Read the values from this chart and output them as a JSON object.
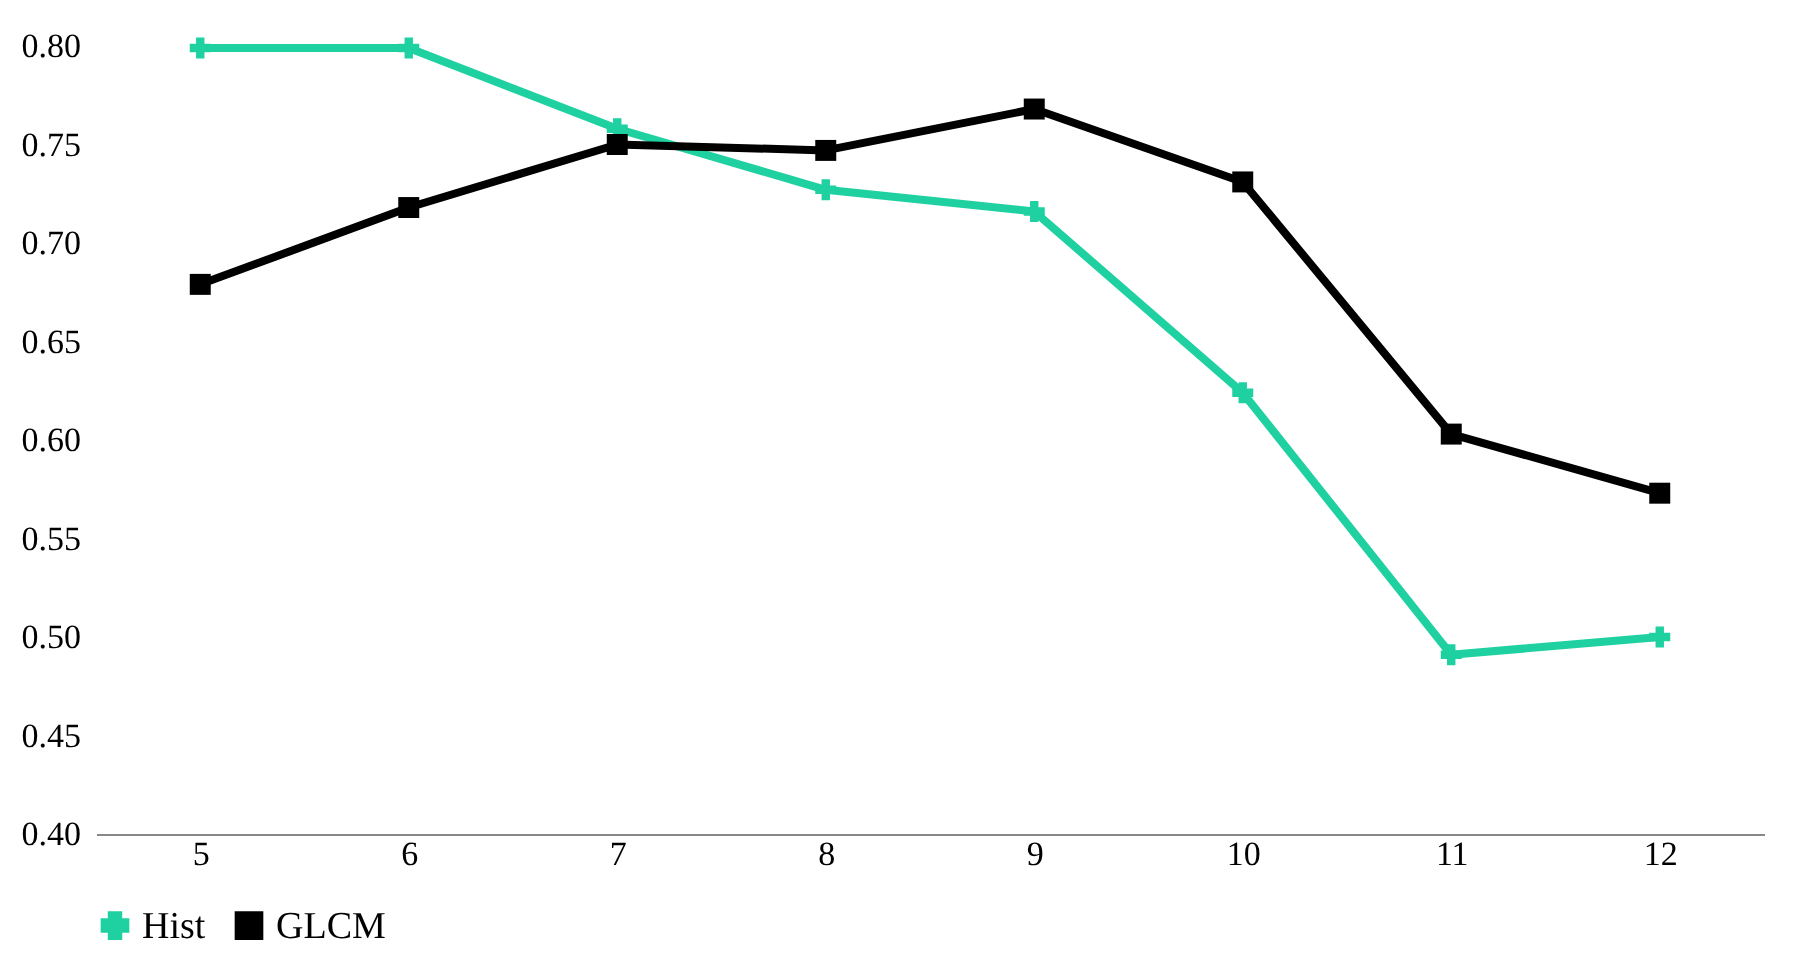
{
  "chart_data": {
    "type": "line",
    "categories": [
      "5",
      "6",
      "7",
      "8",
      "9",
      "10",
      "11",
      "12"
    ],
    "series": [
      {
        "name": "Hist",
        "color": "#1fd1a1",
        "marker": "cross",
        "values": [
          0.799,
          0.799,
          0.758,
          0.727,
          0.716,
          0.624,
          0.491,
          0.5
        ]
      },
      {
        "name": "GLCM",
        "color": "#000000",
        "marker": "square",
        "values": [
          0.679,
          0.718,
          0.75,
          0.747,
          0.768,
          0.731,
          0.603,
          0.573
        ]
      }
    ],
    "ylim": [
      0.4,
      0.8
    ],
    "yticks": [
      {
        "value": 0.4,
        "label": "0.40"
      },
      {
        "value": 0.45,
        "label": "0.45"
      },
      {
        "value": 0.5,
        "label": "0.50"
      },
      {
        "value": 0.55,
        "label": "0.55"
      },
      {
        "value": 0.6,
        "label": "0.60"
      },
      {
        "value": 0.65,
        "label": "0.65"
      },
      {
        "value": 0.7,
        "label": "0.70"
      },
      {
        "value": 0.75,
        "label": "0.75"
      },
      {
        "value": 0.8,
        "label": "0.80"
      }
    ],
    "grid": false,
    "legend": "bottom",
    "line_style": "solid"
  }
}
